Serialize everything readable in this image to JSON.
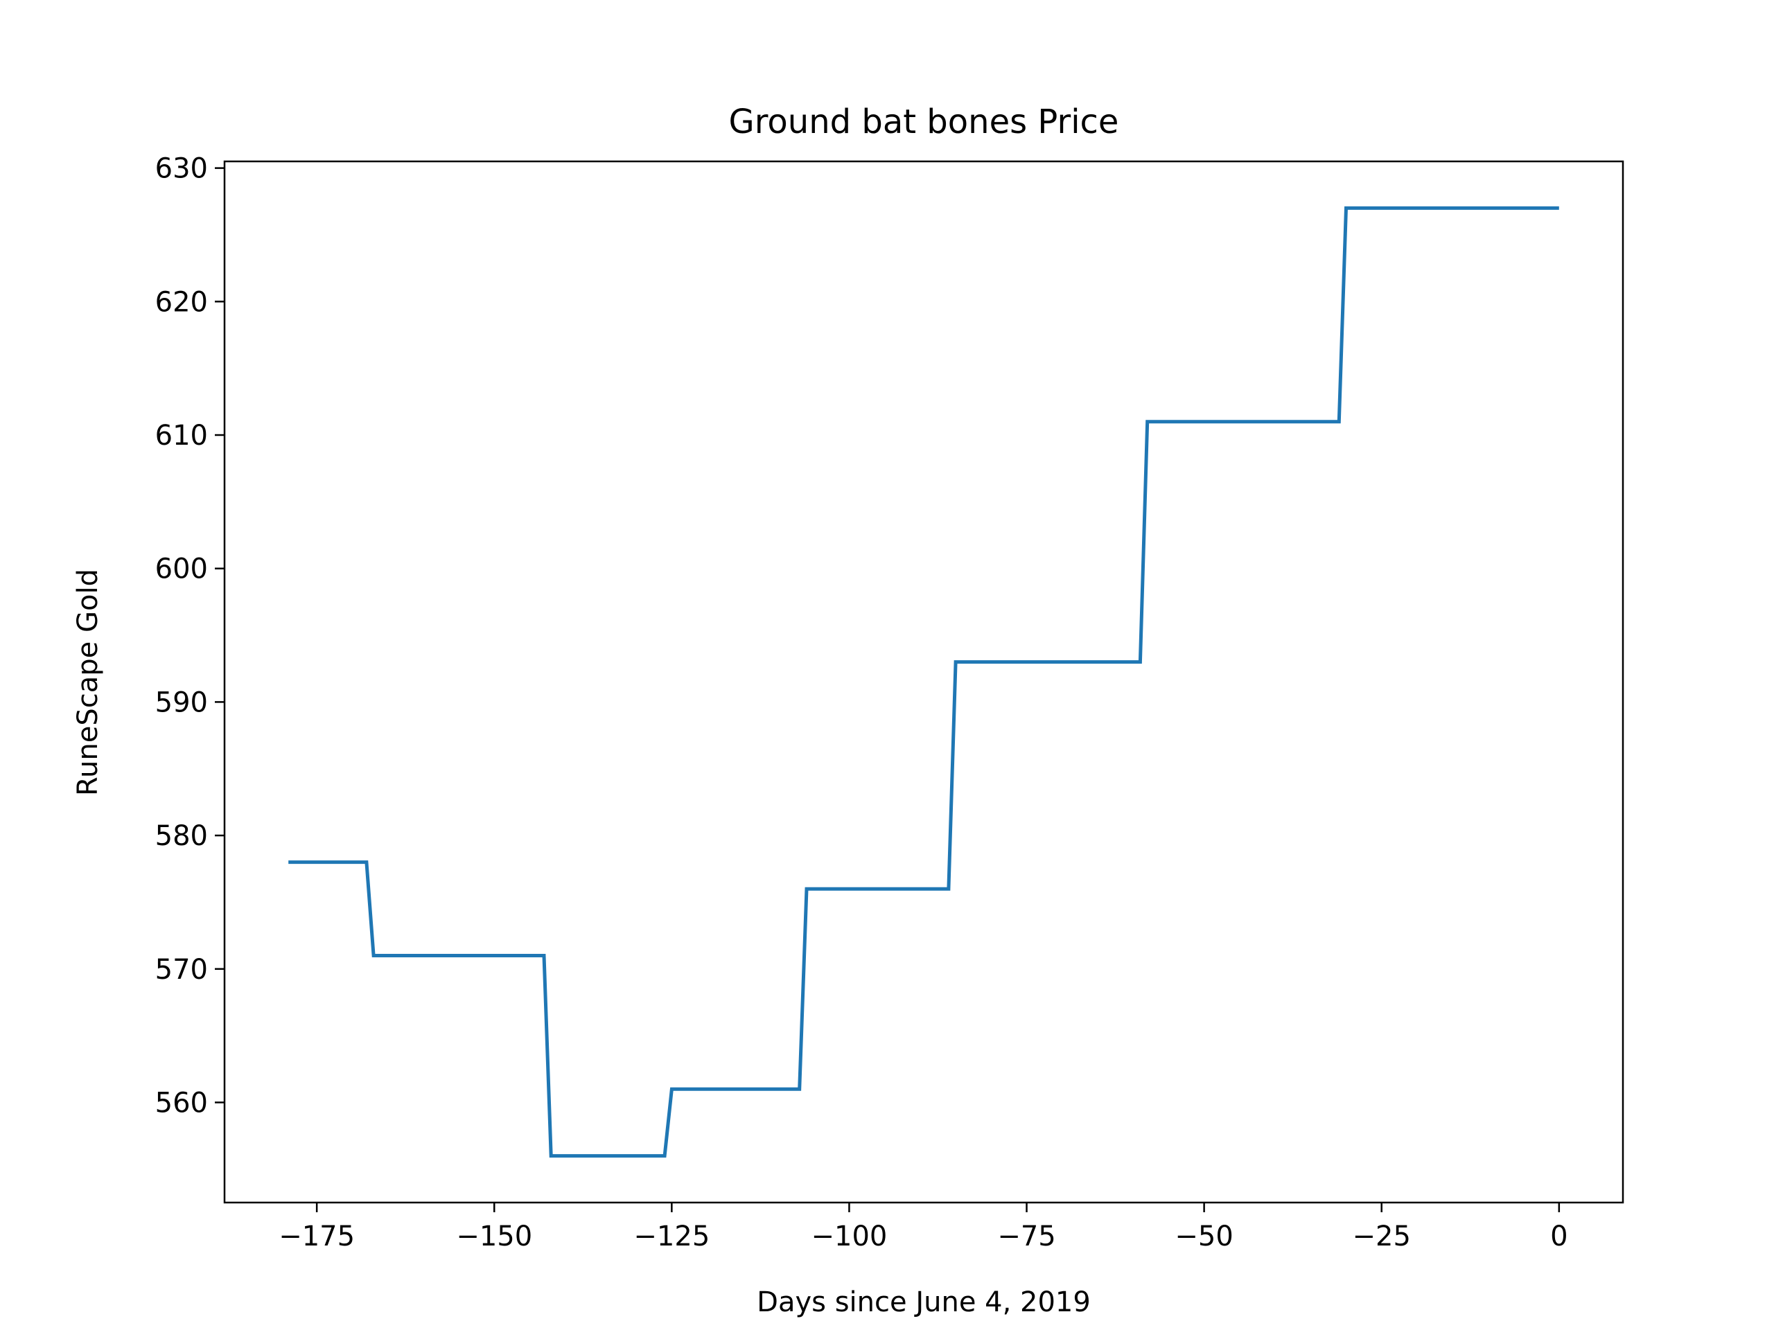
{
  "chart_data": {
    "type": "line",
    "title": "Ground bat bones Price",
    "xlabel": "Days since June 4, 2019",
    "ylabel": "RuneScape Gold",
    "xlim": [
      -188,
      9
    ],
    "ylim": [
      552.5,
      630.5
    ],
    "xticks": [
      -175,
      -150,
      -125,
      -100,
      -75,
      -50,
      -25,
      0
    ],
    "xtick_labels": [
      "−175",
      "−150",
      "−125",
      "−100",
      "−75",
      "−50",
      "−25",
      "0"
    ],
    "yticks": [
      560,
      570,
      580,
      590,
      600,
      610,
      620,
      630
    ],
    "ytick_labels": [
      "560",
      "570",
      "580",
      "590",
      "600",
      "610",
      "620",
      "630"
    ],
    "grid": false,
    "series": [
      {
        "color": "#1f77b4",
        "x": [
          -179,
          -168,
          -167,
          -143,
          -142,
          -126,
          -125,
          -107,
          -106,
          -86,
          -85,
          -59,
          -58,
          -31,
          -30,
          0
        ],
        "y": [
          578,
          578,
          571,
          571,
          556,
          556,
          561,
          561,
          576,
          576,
          593,
          593,
          611,
          611,
          627,
          627
        ]
      }
    ]
  }
}
